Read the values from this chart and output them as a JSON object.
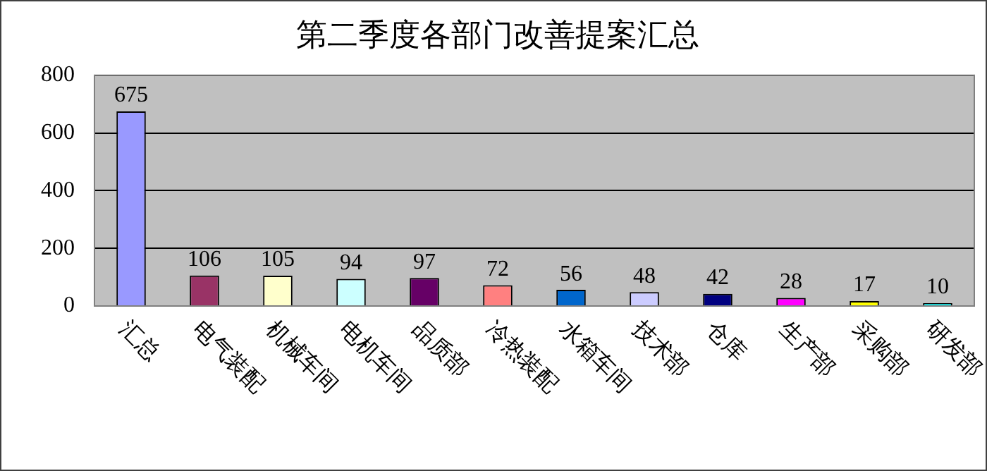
{
  "chart_data": {
    "type": "bar",
    "title": "第二季度各部门改善提案汇总",
    "categories": [
      "汇总",
      "电气装配",
      "机械车间",
      "电机车间",
      "品质部",
      "冷热装配",
      "水箱车间",
      "技术部",
      "仓库",
      "生产部",
      "采购部",
      "研发部"
    ],
    "values": [
      675,
      106,
      105,
      94,
      97,
      72,
      56,
      48,
      42,
      28,
      17,
      10
    ],
    "colors": [
      "#9999ff",
      "#993366",
      "#ffffcc",
      "#ccffff",
      "#660066",
      "#ff8080",
      "#0066cc",
      "#ccccff",
      "#000080",
      "#ff00ff",
      "#ffff00",
      "#00ffff"
    ],
    "ylim": [
      0,
      800
    ],
    "yticks": [
      0,
      200,
      400,
      600,
      800
    ],
    "grid": "y",
    "data_labels": true,
    "legend": false
  }
}
